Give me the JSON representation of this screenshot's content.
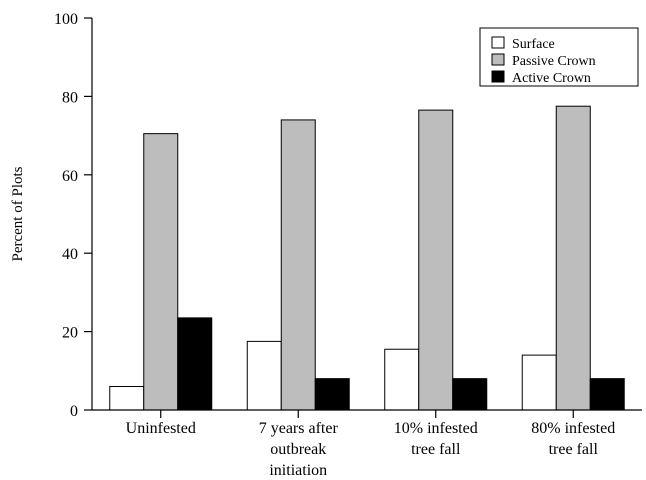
{
  "chart_data": {
    "type": "bar",
    "title": "",
    "xlabel": "",
    "ylabel": "Percent of Plots",
    "ylim": [
      0,
      100
    ],
    "yticks": [
      0,
      20,
      40,
      60,
      80,
      100
    ],
    "categories": [
      [
        "Uninfested"
      ],
      [
        "7 years after",
        "outbreak",
        "initiation"
      ],
      [
        "10% infested",
        "tree fall"
      ],
      [
        "80% infested",
        "tree fall"
      ]
    ],
    "series": [
      {
        "name": "Surface",
        "color": "#ffffff",
        "values": [
          6,
          17.5,
          15.5,
          14
        ]
      },
      {
        "name": "Passive Crown",
        "color": "#bdbdbd",
        "values": [
          70.5,
          74,
          76.5,
          77.5
        ]
      },
      {
        "name": "Active Crown",
        "color": "#000000",
        "values": [
          23.5,
          8,
          8,
          8
        ]
      }
    ],
    "grid": false,
    "legend_position": "top-right"
  }
}
